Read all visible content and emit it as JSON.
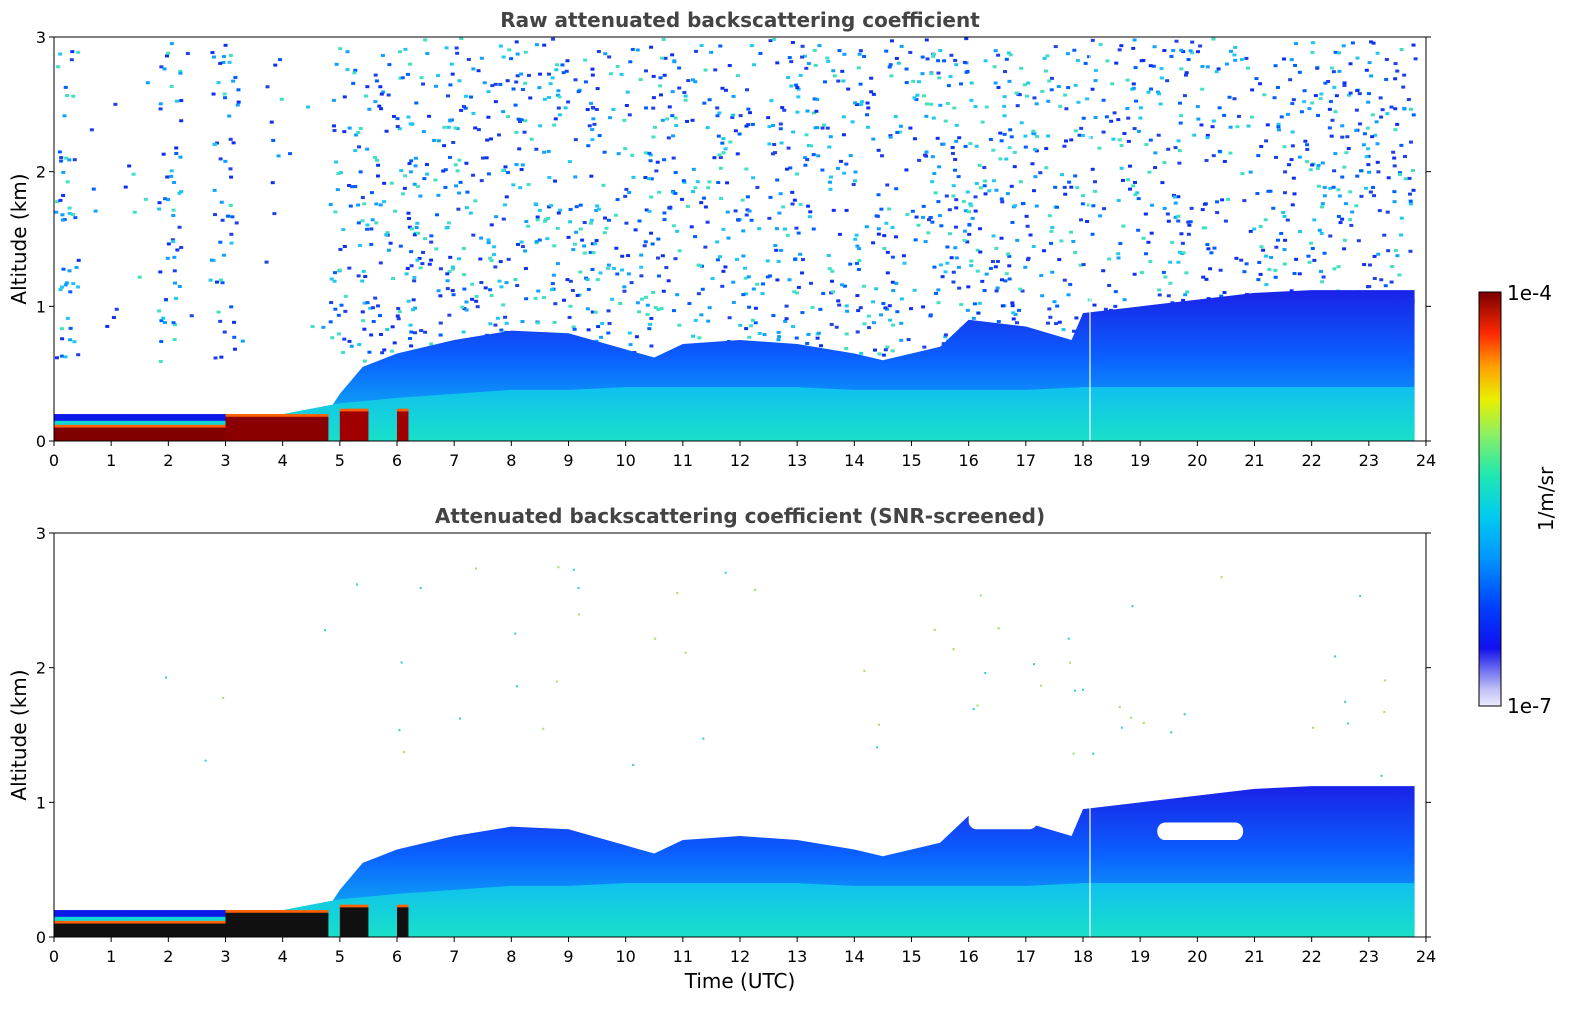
{
  "chart_data": [
    {
      "type": "heatmap",
      "title": "Raw attenuated backscattering coefficient",
      "xlabel": "",
      "ylabel": "Altitude (km)",
      "xlim": [
        0,
        24
      ],
      "ylim": [
        0,
        3
      ],
      "xticks": [
        "0",
        "1",
        "2",
        "3",
        "4",
        "5",
        "6",
        "7",
        "8",
        "9",
        "10",
        "11",
        "12",
        "13",
        "14",
        "15",
        "16",
        "17",
        "18",
        "19",
        "20",
        "21",
        "22",
        "23",
        "24"
      ],
      "yticks": [
        "0",
        "1",
        "2",
        "3"
      ],
      "grid": false,
      "layers": [
        {
          "name": "near-surface layer",
          "x": [
            0,
            0.5,
            1,
            2,
            3,
            4,
            5,
            6,
            7,
            8,
            9,
            10,
            11,
            12,
            13,
            14,
            15,
            16,
            17,
            18,
            19,
            20,
            21,
            22,
            23,
            23.8
          ],
          "top": [
            0.15,
            0.15,
            0.15,
            0.15,
            0.17,
            0.2,
            0.28,
            0.32,
            0.35,
            0.38,
            0.38,
            0.4,
            0.4,
            0.4,
            0.4,
            0.38,
            0.38,
            0.38,
            0.38,
            0.4,
            0.4,
            0.4,
            0.4,
            0.4,
            0.4,
            0.4
          ]
        },
        {
          "name": "boundary layer",
          "x": [
            0,
            1,
            2,
            3,
            4,
            4.8,
            5,
            5.4,
            6,
            7,
            8,
            9,
            10,
            10.5,
            11,
            12,
            13,
            14,
            14.5,
            15,
            15.5,
            16,
            17,
            17.8,
            18,
            19,
            20,
            21,
            22,
            23,
            23.8
          ],
          "top": [
            0.18,
            0.18,
            0.18,
            0.2,
            0.2,
            0.22,
            0.35,
            0.55,
            0.65,
            0.75,
            0.82,
            0.8,
            0.68,
            0.62,
            0.72,
            0.75,
            0.72,
            0.65,
            0.6,
            0.65,
            0.7,
            0.9,
            0.85,
            0.75,
            0.95,
            1.0,
            1.05,
            1.1,
            1.12,
            1.12,
            1.12
          ]
        }
      ],
      "noise_region": {
        "altitude_from": 0.6,
        "altitude_to": 3,
        "gap_hours": [
          [
            0.4,
            1.8
          ],
          [
            2.2,
            2.7
          ],
          [
            3.2,
            4.8
          ]
        ]
      }
    },
    {
      "type": "heatmap",
      "title": "Attenuated backscattering coefficient (SNR-screened)",
      "xlabel": "Time (UTC)",
      "ylabel": "Altitude (km)",
      "xlim": [
        0,
        24
      ],
      "ylim": [
        0,
        3
      ],
      "xticks": [
        "0",
        "1",
        "2",
        "3",
        "4",
        "5",
        "6",
        "7",
        "8",
        "9",
        "10",
        "11",
        "12",
        "13",
        "14",
        "15",
        "16",
        "17",
        "18",
        "19",
        "20",
        "21",
        "22",
        "23",
        "24"
      ],
      "yticks": [
        "0",
        "1",
        "2",
        "3"
      ],
      "grid": false
    }
  ],
  "colorbar": {
    "label": "1/m/sr",
    "max_label": "1e-4",
    "min_label": "1e-7",
    "colors": [
      "#e8e8ff",
      "#c8c8f8",
      "#9a9af0",
      "#3c3cf0",
      "#0000e0",
      "#0050ff",
      "#00a0ff",
      "#00d0e8",
      "#20e8b0",
      "#a0f050",
      "#f0f000",
      "#ffa000",
      "#ff3000",
      "#c00000",
      "#800000"
    ]
  },
  "colors": {
    "title": "#444444",
    "surface_dark": "#800000",
    "surface_black": "#101010",
    "layer_cyan": "#20d8d0",
    "layer_blue": "#1a3cf0"
  }
}
